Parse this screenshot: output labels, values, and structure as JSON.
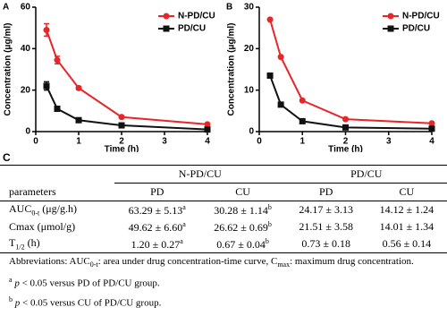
{
  "chart_data": [
    {
      "type": "line",
      "panel_label": "A",
      "ylabel": "Concentration (μg/ml)",
      "xlabel": "Time (h)",
      "x": [
        0.25,
        0.5,
        1,
        2,
        4
      ],
      "xlim": [
        0,
        4
      ],
      "xticks": [
        0,
        1,
        2,
        3,
        4
      ],
      "ylim": [
        0,
        60
      ],
      "yticks": [
        0,
        20,
        40,
        60
      ],
      "legend": "upper right",
      "series": [
        {
          "name": "N-PD/CU",
          "color": "#e8262a",
          "marker": "circle",
          "values": [
            49,
            34.5,
            21,
            7,
            3.5
          ],
          "errors": [
            3,
            1.8,
            0.8,
            0.5,
            0.4
          ]
        },
        {
          "name": "PD/CU",
          "color": "#111111",
          "marker": "square",
          "values": [
            22,
            11,
            5.5,
            3,
            1
          ],
          "errors": [
            2,
            0.8,
            0.5,
            0.3,
            0.2
          ]
        }
      ]
    },
    {
      "type": "line",
      "panel_label": "B",
      "ylabel": "Concentration (μg/ml)",
      "xlabel": "Time (h)",
      "x": [
        0.25,
        0.5,
        1,
        2,
        4
      ],
      "xlim": [
        0,
        4
      ],
      "xticks": [
        0,
        1,
        2,
        3,
        4
      ],
      "ylim": [
        0,
        30
      ],
      "yticks": [
        0,
        10,
        20,
        30
      ],
      "legend": "upper right",
      "series": [
        {
          "name": "N-PD/CU",
          "color": "#e8262a",
          "marker": "circle",
          "values": [
            27,
            18,
            7.5,
            3,
            2
          ]
        },
        {
          "name": "PD/CU",
          "color": "#111111",
          "marker": "square",
          "values": [
            13.5,
            6.5,
            2.5,
            1,
            0.7
          ]
        }
      ]
    }
  ],
  "table": {
    "panel_label": "C",
    "groups": [
      "N-PD/CU",
      "PD/CU"
    ],
    "header": [
      [
        {
          "text": "parameters"
        }
      ],
      [
        {
          "text": "PD"
        }
      ],
      [
        {
          "text": "CU"
        }
      ],
      [
        {
          "text": "PD"
        }
      ],
      [
        {
          "text": "CU"
        }
      ]
    ],
    "rows": [
      [
        [
          {
            "text": "AUC"
          },
          {
            "text": "0-t",
            "style": "sub"
          },
          {
            "text": " (μg/g.h)"
          }
        ],
        [
          {
            "text": "63.29 ± 5.13"
          },
          {
            "text": "a",
            "style": "sup"
          }
        ],
        [
          {
            "text": "30.28 ± 1.14"
          },
          {
            "text": "b",
            "style": "sup"
          }
        ],
        [
          {
            "text": "24.17 ± 3.13"
          }
        ],
        [
          {
            "text": "14.12 ± 1.24"
          }
        ]
      ],
      [
        [
          {
            "text": "Cmax (μmol/g)"
          }
        ],
        [
          {
            "text": "49.62 ± 6.60"
          },
          {
            "text": "a",
            "style": "sup"
          }
        ],
        [
          {
            "text": "26.62 ± 0.69"
          },
          {
            "text": "b",
            "style": "sup"
          }
        ],
        [
          {
            "text": "21.51 ± 3.58"
          }
        ],
        [
          {
            "text": "14.01 ± 1.34"
          }
        ]
      ],
      [
        [
          {
            "text": "T"
          },
          {
            "text": "1/2",
            "style": "sub"
          },
          {
            "text": " (h)"
          }
        ],
        [
          {
            "text": "1.20 ± 0.27"
          },
          {
            "text": "a",
            "style": "sup"
          }
        ],
        [
          {
            "text": "0.67 ± 0.04"
          },
          {
            "text": "b",
            "style": "sup"
          }
        ],
        [
          {
            "text": "0.73 ± 0.18"
          }
        ],
        [
          {
            "text": "0.56 ± 0.14"
          }
        ]
      ]
    ],
    "notes": [
      [
        {
          "text": "Abbreviations: AUC"
        },
        {
          "text": "0-t",
          "style": "sub"
        },
        {
          "text": ": area under drug concentration-time curve, C"
        },
        {
          "text": "max",
          "style": "sub"
        },
        {
          "text": ": maximum drug concentration."
        }
      ],
      [
        {
          "text": "a",
          "style": "sup"
        },
        {
          "text": " "
        },
        {
          "text": "p",
          "style": "i"
        },
        {
          "text": " < 0.05 versus PD of PD/CU group."
        }
      ],
      [
        {
          "text": "b",
          "style": "sup"
        },
        {
          "text": " "
        },
        {
          "text": "p",
          "style": "i"
        },
        {
          "text": " < 0.05 versus CU of PD/CU group."
        }
      ]
    ]
  }
}
